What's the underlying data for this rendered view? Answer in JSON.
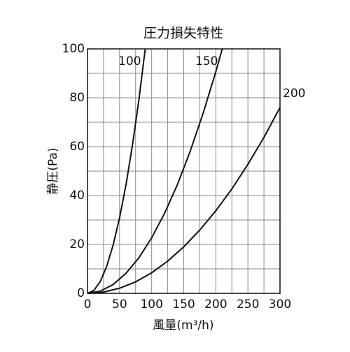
{
  "chart_data": {
    "type": "line",
    "title": "圧力損失特性",
    "xlabel": "風量(m³/h)",
    "ylabel": "静圧(Pa)",
    "xlim": [
      0,
      300
    ],
    "ylim": [
      0,
      100
    ],
    "xticks": [
      0,
      50,
      100,
      150,
      200,
      250,
      300
    ],
    "yticks": [
      0,
      20,
      40,
      60,
      80,
      100
    ],
    "xgrid": [
      25,
      75,
      125,
      175,
      225,
      275
    ],
    "ygrid": [
      10,
      30,
      50,
      70,
      90
    ],
    "grid": true,
    "color": "#111111",
    "series": [
      {
        "name": "100",
        "x": [
          0,
          10,
          20,
          30,
          40,
          50,
          60,
          70,
          80,
          90
        ],
        "values": [
          0,
          1.2,
          4.9,
          11.1,
          19.8,
          30.9,
          44.4,
          60.5,
          79.0,
          100
        ]
      },
      {
        "name": "150",
        "x": [
          0,
          20,
          40,
          60,
          80,
          100,
          120,
          140,
          160,
          180,
          200,
          210
        ],
        "values": [
          0,
          0.9,
          3.6,
          8.2,
          14.5,
          22.7,
          32.7,
          44.4,
          58.1,
          73.5,
          90.7,
          100
        ]
      },
      {
        "name": "200",
        "x": [
          0,
          25,
          50,
          75,
          100,
          125,
          150,
          175,
          200,
          225,
          250,
          275,
          300
        ],
        "values": [
          0,
          0.5,
          2.1,
          4.7,
          8.4,
          13.2,
          19.0,
          25.9,
          33.8,
          42.7,
          52.8,
          63.8,
          76.0
        ]
      }
    ]
  }
}
